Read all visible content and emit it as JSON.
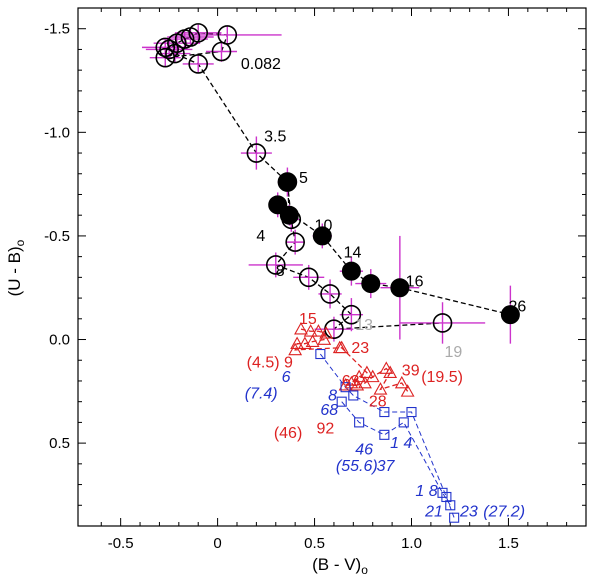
{
  "chart_data": {
    "type": "scatter",
    "title": "",
    "xlabel": "(B - V)",
    "xlabel_subscript": "o",
    "ylabel": "(U - B)",
    "ylabel_subscript": "o",
    "xlim": [
      -0.72,
      1.9
    ],
    "ylim": [
      -1.6,
      0.9
    ],
    "y_inverted": true,
    "grid": false,
    "x_ticks": [
      {
        "value": -0.5,
        "label": "-0.5"
      },
      {
        "value": 0,
        "label": "0"
      },
      {
        "value": 0.5,
        "label": "0.5"
      },
      {
        "value": 1.0,
        "label": "1.0"
      },
      {
        "value": 1.5,
        "label": "1.5"
      }
    ],
    "y_ticks": [
      {
        "value": -1.5,
        "label": "-1.5"
      },
      {
        "value": -1.0,
        "label": "-1.0"
      },
      {
        "value": -0.5,
        "label": "-0.5"
      },
      {
        "value": 0,
        "label": "0.0"
      },
      {
        "value": 0.5,
        "label": "0.5"
      }
    ],
    "colors": {
      "black": "#000000",
      "error_bar": "#cc33cc",
      "red": "#dd2222",
      "blue": "#2233cc",
      "gray": "#aaaaaa"
    },
    "series": [
      {
        "name": "open-circle-track",
        "color": "#000000",
        "marker": "open-circle",
        "line": "dashed",
        "points": [
          {
            "x": -0.27,
            "y": -1.41,
            "ex": 0.12,
            "ey": 0.04
          },
          {
            "x": -0.25,
            "y": -1.4,
            "ex": 0.12,
            "ey": 0.04
          },
          {
            "x": -0.21,
            "y": -1.43,
            "ex": 0.12,
            "ey": 0.04
          },
          {
            "x": -0.17,
            "y": -1.45,
            "ex": 0.12,
            "ey": 0.04
          },
          {
            "x": -0.14,
            "y": -1.46,
            "ex": 0.12,
            "ey": 0.04
          },
          {
            "x": -0.1,
            "y": -1.48,
            "ex": 0.12,
            "ey": 0.04
          },
          {
            "x": 0.05,
            "y": -1.47,
            "ex": 0.28,
            "ey": 0.04
          },
          {
            "x": 0.02,
            "y": -1.39,
            "ex": 0.08,
            "ey": 0.05
          },
          {
            "x": -0.27,
            "y": -1.36,
            "ex": 0.08,
            "ey": 0.04
          },
          {
            "x": -0.22,
            "y": -1.38,
            "ex": 0.08,
            "ey": 0.04
          },
          {
            "x": -0.1,
            "y": -1.33,
            "ex": 0.08,
            "ey": 0.04
          },
          {
            "x": 0.2,
            "y": -0.9,
            "ex": 0.08,
            "ey": 0.08
          },
          {
            "x": 0.36,
            "y": -0.76,
            "ex": 0.05,
            "ey": 0.07
          },
          {
            "x": 0.38,
            "y": -0.58,
            "ex": 0.04,
            "ey": 0.06
          },
          {
            "x": 0.4,
            "y": -0.47,
            "ex": 0.05,
            "ey": 0.06
          },
          {
            "x": 0.3,
            "y": -0.36,
            "ex": 0.14,
            "ey": 0.06
          },
          {
            "x": 0.47,
            "y": -0.3,
            "ex": 0.08,
            "ey": 0.06
          },
          {
            "x": 0.58,
            "y": -0.22,
            "ex": 0.06,
            "ey": 0.07
          },
          {
            "x": 0.69,
            "y": -0.12,
            "ex": 0.06,
            "ey": 0.08
          },
          {
            "x": 0.6,
            "y": -0.05,
            "ex": 0.1,
            "ey": 0.06
          },
          {
            "x": 1.16,
            "y": -0.08,
            "ex": 0.22,
            "ey": 0.1
          }
        ]
      },
      {
        "name": "filled-circle-track",
        "color": "#000000",
        "marker": "filled-circle",
        "line": "dashed",
        "points": [
          {
            "x": 0.36,
            "y": -0.76,
            "ex": 0.03,
            "ey": 0.05
          },
          {
            "x": 0.37,
            "y": -0.6,
            "ex": 0.03,
            "ey": 0.05
          },
          {
            "x": 0.31,
            "y": -0.65,
            "ex": 0.04,
            "ey": 0.06
          },
          {
            "x": 0.54,
            "y": -0.5,
            "ex": 0.05,
            "ey": 0.06
          },
          {
            "x": 0.69,
            "y": -0.33,
            "ex": 0.06,
            "ey": 0.07
          },
          {
            "x": 0.79,
            "y": -0.27,
            "ex": 0.08,
            "ey": 0.07
          },
          {
            "x": 0.94,
            "y": -0.25,
            "ex": 0.1,
            "ey": 0.25
          },
          {
            "x": 1.51,
            "y": -0.12,
            "ex": 0.0,
            "ey": 0.14
          }
        ]
      },
      {
        "name": "red-triangles",
        "color": "#dd2222",
        "marker": "open-triangle",
        "line": "dashed",
        "points": [
          {
            "x": 0.43,
            "y": -0.05
          },
          {
            "x": 0.48,
            "y": -0.04
          },
          {
            "x": 0.52,
            "y": -0.04
          },
          {
            "x": 0.56,
            "y": -0.03
          },
          {
            "x": 0.55,
            "y": 0.0
          },
          {
            "x": 0.49,
            "y": 0.01
          },
          {
            "x": 0.45,
            "y": 0.02
          },
          {
            "x": 0.41,
            "y": 0.02
          },
          {
            "x": 0.4,
            "y": 0.05
          },
          {
            "x": 0.63,
            "y": 0.04
          },
          {
            "x": 0.64,
            "y": 0.04
          },
          {
            "x": 0.77,
            "y": 0.16
          },
          {
            "x": 0.73,
            "y": 0.18
          },
          {
            "x": 0.69,
            "y": 0.21
          },
          {
            "x": 0.66,
            "y": 0.22
          },
          {
            "x": 0.72,
            "y": 0.22
          },
          {
            "x": 0.76,
            "y": 0.21
          },
          {
            "x": 0.8,
            "y": 0.18
          },
          {
            "x": 0.87,
            "y": 0.14
          },
          {
            "x": 0.89,
            "y": 0.16
          },
          {
            "x": 0.84,
            "y": 0.24
          },
          {
            "x": 0.95,
            "y": 0.21
          },
          {
            "x": 0.98,
            "y": 0.25
          }
        ]
      },
      {
        "name": "blue-squares-a",
        "color": "#2233cc",
        "marker": "open-square",
        "line": "dashed",
        "points": [
          {
            "x": 0.53,
            "y": 0.07
          },
          {
            "x": 0.66,
            "y": 0.23
          },
          {
            "x": 0.7,
            "y": 0.27
          },
          {
            "x": 0.86,
            "y": 0.35
          },
          {
            "x": 1.0,
            "y": 0.35
          },
          {
            "x": 1.18,
            "y": 0.76
          },
          {
            "x": 1.22,
            "y": 0.86
          }
        ]
      },
      {
        "name": "blue-squares-b",
        "color": "#2233cc",
        "marker": "open-square",
        "line": "dashed",
        "points": [
          {
            "x": 0.64,
            "y": 0.3
          },
          {
            "x": 0.73,
            "y": 0.4
          },
          {
            "x": 0.86,
            "y": 0.46
          },
          {
            "x": 0.96,
            "y": 0.4
          },
          {
            "x": 1.16,
            "y": 0.74
          },
          {
            "x": 1.2,
            "y": 0.8
          }
        ]
      }
    ],
    "annotations": [
      {
        "text": "0.082",
        "x": 0.12,
        "y": -1.33,
        "color": "#000000",
        "italic": false
      },
      {
        "text": "3.5",
        "x": 0.24,
        "y": -0.98,
        "color": "#000000",
        "italic": false
      },
      {
        "text": "5",
        "x": 0.42,
        "y": -0.78,
        "color": "#000000",
        "italic": false
      },
      {
        "text": "4",
        "x": 0.2,
        "y": -0.5,
        "color": "#000000",
        "italic": false
      },
      {
        "text": "10",
        "x": 0.5,
        "y": -0.55,
        "color": "#000000",
        "italic": false
      },
      {
        "text": "14",
        "x": 0.65,
        "y": -0.42,
        "color": "#000000",
        "italic": false
      },
      {
        "text": "8",
        "x": 0.3,
        "y": -0.33,
        "color": "#000000",
        "italic": false
      },
      {
        "text": "16",
        "x": 0.97,
        "y": -0.28,
        "color": "#000000",
        "italic": false
      },
      {
        "text": "26",
        "x": 1.5,
        "y": -0.16,
        "color": "#000000",
        "italic": false
      },
      {
        "text": "13",
        "x": 0.71,
        "y": -0.07,
        "color": "#aaaaaa",
        "italic": false
      },
      {
        "text": "19",
        "x": 1.17,
        "y": 0.06,
        "color": "#aaaaaa",
        "italic": false
      },
      {
        "text": "15",
        "x": 0.42,
        "y": -0.1,
        "color": "#dd2222",
        "italic": false
      },
      {
        "text": "23",
        "x": 0.69,
        "y": 0.04,
        "color": "#dd2222",
        "italic": false
      },
      {
        "text": "(4.5) 9",
        "x": 0.15,
        "y": 0.11,
        "color": "#dd2222",
        "italic": false
      },
      {
        "text": "63",
        "x": 0.64,
        "y": 0.2,
        "color": "#dd2222",
        "italic": false
      },
      {
        "text": "39",
        "x": 0.95,
        "y": 0.15,
        "color": "#dd2222",
        "italic": false
      },
      {
        "text": "(19.5)",
        "x": 1.05,
        "y": 0.18,
        "color": "#dd2222",
        "italic": false
      },
      {
        "text": "28",
        "x": 0.78,
        "y": 0.3,
        "color": "#dd2222",
        "italic": false
      },
      {
        "text": "(46)",
        "x": 0.29,
        "y": 0.45,
        "color": "#dd2222",
        "italic": false
      },
      {
        "text": "92",
        "x": 0.51,
        "y": 0.43,
        "color": "#dd2222",
        "italic": false
      },
      {
        "text": "6",
        "x": 0.33,
        "y": 0.18,
        "color": "#2233cc",
        "italic": true
      },
      {
        "text": "(7.4)",
        "x": 0.14,
        "y": 0.26,
        "color": "#2233cc",
        "italic": true
      },
      {
        "text": "8",
        "x": 0.57,
        "y": 0.27,
        "color": "#2233cc",
        "italic": true
      },
      {
        "text": "68",
        "x": 0.53,
        "y": 0.34,
        "color": "#2233cc",
        "italic": true
      },
      {
        "text": "46",
        "x": 0.71,
        "y": 0.53,
        "color": "#2233cc",
        "italic": true
      },
      {
        "text": "(55.6)",
        "x": 0.61,
        "y": 0.61,
        "color": "#2233cc",
        "italic": true
      },
      {
        "text": "37",
        "x": 0.82,
        "y": 0.61,
        "color": "#2233cc",
        "italic": true
      },
      {
        "text": "1 4",
        "x": 0.89,
        "y": 0.5,
        "color": "#2233cc",
        "italic": true
      },
      {
        "text": "1 8",
        "x": 1.02,
        "y": 0.73,
        "color": "#2233cc",
        "italic": true
      },
      {
        "text": "21",
        "x": 1.07,
        "y": 0.83,
        "color": "#2233cc",
        "italic": true
      },
      {
        "text": "23",
        "x": 1.25,
        "y": 0.83,
        "color": "#2233cc",
        "italic": true
      },
      {
        "text": "(27.2)",
        "x": 1.37,
        "y": 0.83,
        "color": "#2233cc",
        "italic": true
      }
    ]
  }
}
